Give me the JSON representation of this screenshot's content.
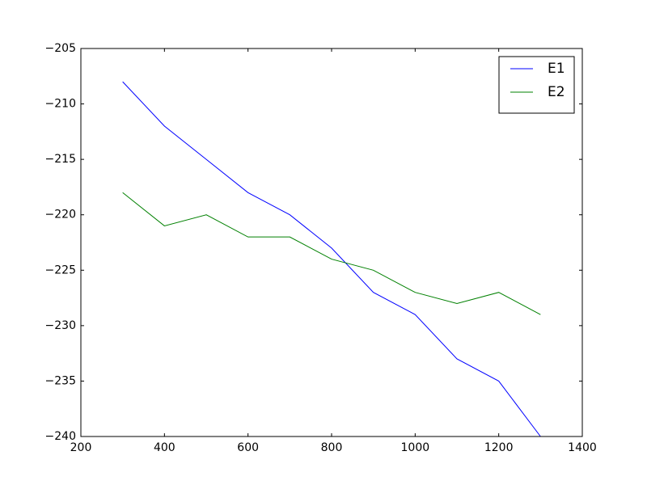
{
  "chart_data": {
    "type": "line",
    "x": [
      300,
      400,
      500,
      600,
      700,
      800,
      900,
      1000,
      1100,
      1200,
      1300
    ],
    "series": [
      {
        "name": "E1",
        "color": "#0000ff",
        "values": [
          -208,
          -212,
          -215,
          -218,
          -220,
          -223,
          -227,
          -229,
          -233,
          -235,
          -240
        ]
      },
      {
        "name": "E2",
        "color": "#008000",
        "values": [
          -218,
          -221,
          -220,
          -222,
          -222,
          -224,
          -225,
          -227,
          -228,
          -227,
          -229
        ]
      }
    ],
    "xlim": [
      200,
      1400
    ],
    "xticks": [
      200,
      400,
      600,
      800,
      1000,
      1200,
      1400
    ],
    "ylim": [
      -240,
      -205
    ],
    "yticks": [
      {
        "value": -240,
        "label": "−240"
      },
      {
        "value": -235,
        "label": "−235"
      },
      {
        "value": -230,
        "label": "−230"
      },
      {
        "value": -225,
        "label": "−225"
      },
      {
        "value": -220,
        "label": "−220"
      },
      {
        "value": -215,
        "label": "−215"
      },
      {
        "value": -210,
        "label": "−210"
      },
      {
        "value": -205,
        "label": "−205"
      }
    ],
    "grid": false,
    "legend": "upper right"
  }
}
